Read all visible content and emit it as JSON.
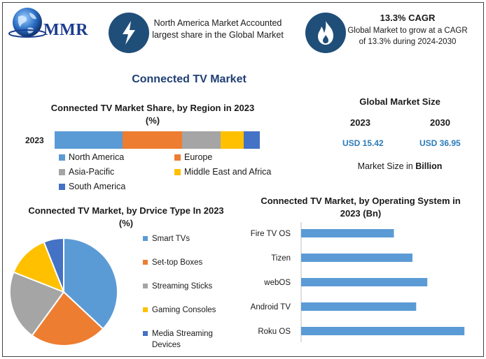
{
  "header": {
    "logo_text": "MMR",
    "highlight1": "North America Market Accounted largest share in the Global Market",
    "highlight2_title": "13.3% CAGR",
    "highlight2_text": "Global Market to grow at a CAGR of 13.3% during 2024-2030"
  },
  "main_title": "Connected TV Market",
  "global_size": {
    "title": "Global Market Size",
    "year1": "2023",
    "year2": "2030",
    "value1": "USD 15.42",
    "value2": "USD 36.95",
    "note_prefix": "Market Size in ",
    "note_unit": "Billion"
  },
  "colors": {
    "blue": "#5b9bd5",
    "orange": "#ed7d31",
    "gray": "#a5a5a5",
    "yellow": "#ffc000",
    "darkblue": "#4472c4",
    "badge": "#1f4e79",
    "title": "#1f3f73",
    "value": "#2b7bb9"
  },
  "chart_data": [
    {
      "type": "bar",
      "orientation": "horizontal-stacked",
      "title": "Connected TV Market Share, by Region in 2023 (%)",
      "categories": [
        "2023"
      ],
      "series": [
        {
          "name": "North America",
          "values": [
            33
          ]
        },
        {
          "name": "Europe",
          "values": [
            29
          ]
        },
        {
          "name": "Asia-Pacific",
          "values": [
            19
          ]
        },
        {
          "name": "Middle East and Africa",
          "values": [
            11
          ]
        },
        {
          "name": "South America",
          "values": [
            8
          ]
        }
      ],
      "legend": "bottom"
    },
    {
      "type": "pie",
      "title": "Connected TV Market, by Drvice Type In 2023 (%)",
      "labels": [
        "Smart TVs",
        "Set-top Boxes",
        "Streaming Sticks",
        "Gaming Consoles",
        "Media Streaming Devices"
      ],
      "values": [
        37,
        23,
        21,
        13,
        6
      ],
      "legend": "right"
    },
    {
      "type": "bar",
      "orientation": "horizontal",
      "title": "Connected TV Market, by Operating System in 2023 (Bn)",
      "categories": [
        "Fire TV OS",
        "Tizen",
        "webOS",
        "Android TV",
        "Roku OS"
      ],
      "values": [
        2.5,
        3.0,
        3.4,
        3.1,
        4.4
      ],
      "xlim": [
        0,
        5
      ]
    }
  ]
}
